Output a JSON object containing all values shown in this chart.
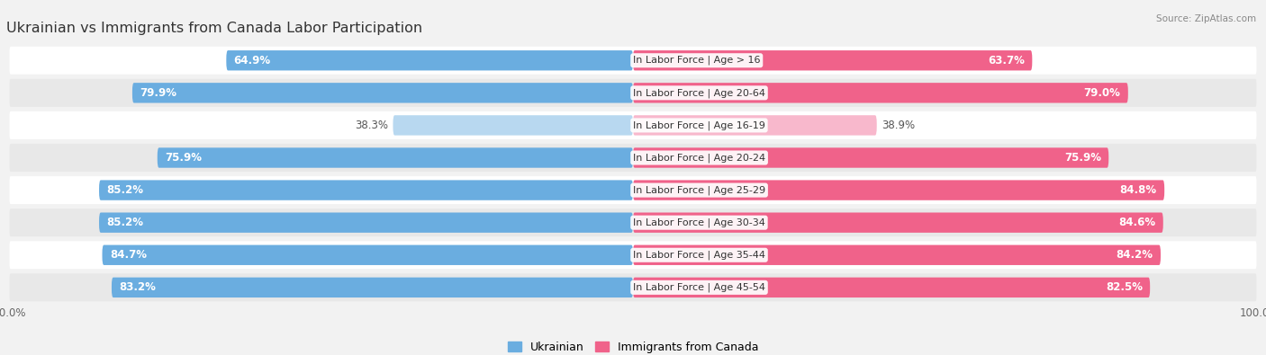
{
  "title": "Ukrainian vs Immigrants from Canada Labor Participation",
  "source": "Source: ZipAtlas.com",
  "categories": [
    "In Labor Force | Age > 16",
    "In Labor Force | Age 20-64",
    "In Labor Force | Age 16-19",
    "In Labor Force | Age 20-24",
    "In Labor Force | Age 25-29",
    "In Labor Force | Age 30-34",
    "In Labor Force | Age 35-44",
    "In Labor Force | Age 45-54"
  ],
  "ukrainian": [
    64.9,
    79.9,
    38.3,
    75.9,
    85.2,
    85.2,
    84.7,
    83.2
  ],
  "canada": [
    63.7,
    79.0,
    38.9,
    75.9,
    84.8,
    84.6,
    84.2,
    82.5
  ],
  "ukrainian_color": "#6aade0",
  "canada_color": "#f0628a",
  "ukrainian_light_color": "#b8d8f0",
  "canada_light_color": "#f8b8cc",
  "bg_color": "#f2f2f2",
  "row_bg_even": "#ffffff",
  "row_bg_odd": "#e8e8e8",
  "max_val": 100.0,
  "bar_height": 0.62,
  "title_fontsize": 11.5,
  "label_fontsize": 8.5,
  "tick_fontsize": 8.5,
  "legend_fontsize": 9,
  "cat_label_fontsize": 8.0
}
